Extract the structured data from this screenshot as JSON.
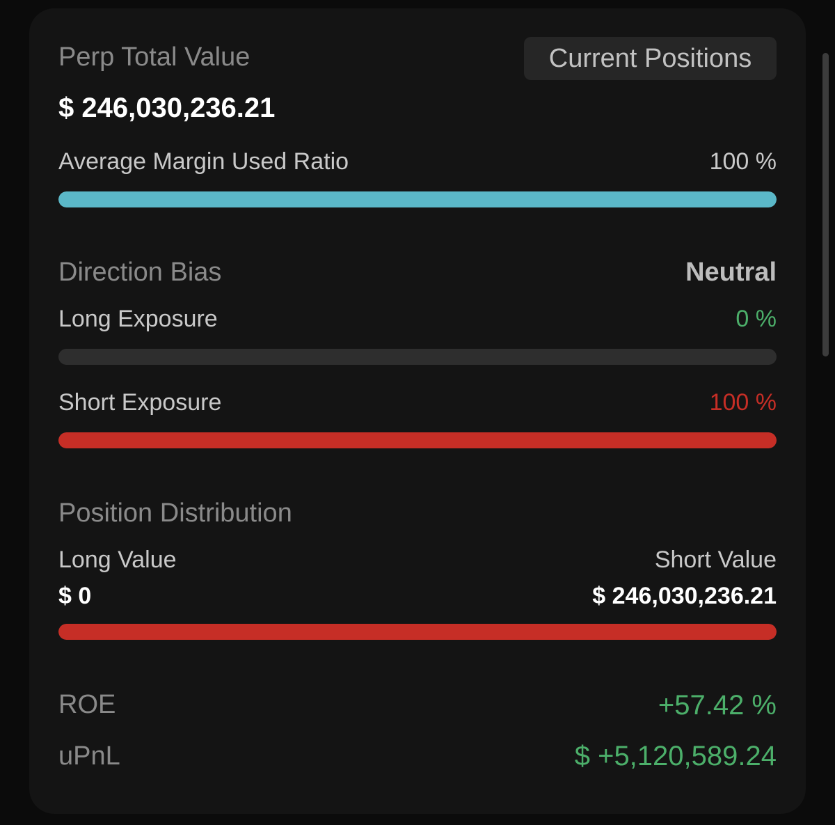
{
  "header": {
    "title": "Perp Total Value",
    "tab_label": "Current Positions",
    "total_value": "$ 246,030,236.21"
  },
  "margin": {
    "label": "Average Margin Used Ratio",
    "value_text": "100 %",
    "fraction": 1.0,
    "color": "#5bb8c8"
  },
  "direction": {
    "title": "Direction Bias",
    "bias": "Neutral",
    "long": {
      "label": "Long Exposure",
      "value_text": "0 %",
      "fraction": 0.0,
      "color": "#4caf6a"
    },
    "short": {
      "label": "Short Exposure",
      "value_text": "100 %",
      "fraction": 1.0,
      "color": "#c62e26"
    }
  },
  "distribution": {
    "title": "Position Distribution",
    "long_label": "Long Value",
    "long_value": "$ 0",
    "short_label": "Short Value",
    "short_value": "$ 246,030,236.21",
    "short_fraction": 1.0,
    "color": "#c62e26"
  },
  "metrics": {
    "roe_label": "ROE",
    "roe_value": "+57.42 %",
    "upnl_label": "uPnL",
    "upnl_value": "$ +5,120,589.24"
  },
  "colors": {
    "positive": "#4caf6a",
    "negative": "#c62e26",
    "accent": "#5bb8c8",
    "track": "#2e2e2e"
  }
}
